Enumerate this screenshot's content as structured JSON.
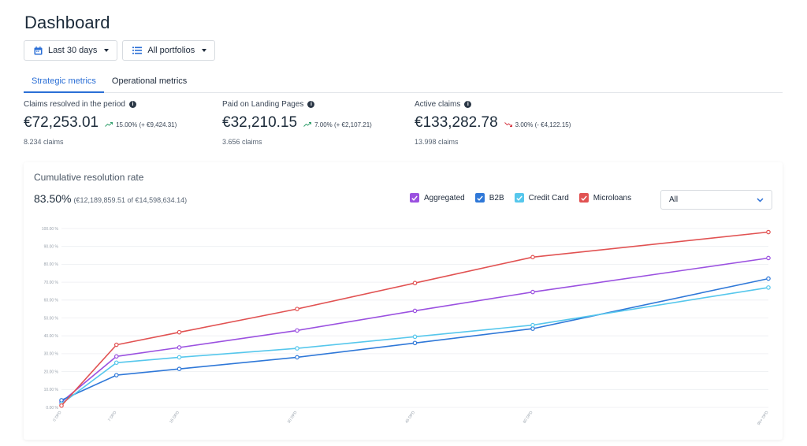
{
  "page": {
    "title": "Dashboard"
  },
  "filters": {
    "date_range": "Last 30 days",
    "portfolio": "All portfolios"
  },
  "tabs": [
    {
      "label": "Strategic metrics",
      "active": true
    },
    {
      "label": "Operational metrics",
      "active": false
    }
  ],
  "kpis": [
    {
      "label": "Claims resolved in the period",
      "value": "€72,253.01",
      "delta": "15.00% (+ €9,424.31)",
      "trend": "up",
      "sub": "8.234 claims"
    },
    {
      "label": "Paid on Landing Pages",
      "value": "€32,210.15",
      "delta": "7.00% (+ €2,107.21)",
      "trend": "up",
      "sub": "3.656 claims"
    },
    {
      "label": "Active claims",
      "value": "€133,282.78",
      "delta": "3.00% (- €4,122.15)",
      "trend": "down",
      "sub": "13.998 claims"
    }
  ],
  "colors": {
    "accent": "#2b6fd6",
    "trend_up": "#2e9e6a",
    "trend_down": "#d63a45"
  },
  "chart": {
    "title": "Cumulative resolution rate",
    "rate_value": "83.50%",
    "rate_detail": "(€12,189,859.51 of €14,598,634.14)",
    "select_value": "All"
  },
  "chart_data": {
    "type": "line",
    "x": [
      "0 DPD",
      "7 DPD",
      "15 DPD",
      "30 DPD",
      "45 DPD",
      "60 DPD",
      "90+ DPD"
    ],
    "x_numeric": [
      0,
      7,
      15,
      30,
      45,
      60,
      90
    ],
    "y_ticks": [
      "0.00 %",
      "10.00 %",
      "20.00 %",
      "30.00 %",
      "40.00 %",
      "50.00 %",
      "60.00 %",
      "70.00 %",
      "80.00 %",
      "90.00 %",
      "100.00 %"
    ],
    "ylim": [
      0,
      100
    ],
    "grid": true,
    "legend_position": "top-right",
    "series": [
      {
        "name": "Aggregated",
        "color": "#9b51e0",
        "values": [
          3,
          28.5,
          33.5,
          43,
          54,
          64.5,
          83.5
        ]
      },
      {
        "name": "B2B",
        "color": "#2f78d8",
        "values": [
          4,
          18,
          21.5,
          28,
          36,
          44,
          72
        ]
      },
      {
        "name": "Credit Card",
        "color": "#56c7ec",
        "values": [
          2,
          25,
          28,
          33,
          39.5,
          46,
          67
        ]
      },
      {
        "name": "Microloans",
        "color": "#e15252",
        "values": [
          1,
          35,
          42,
          55,
          69.5,
          84,
          98
        ]
      }
    ]
  }
}
